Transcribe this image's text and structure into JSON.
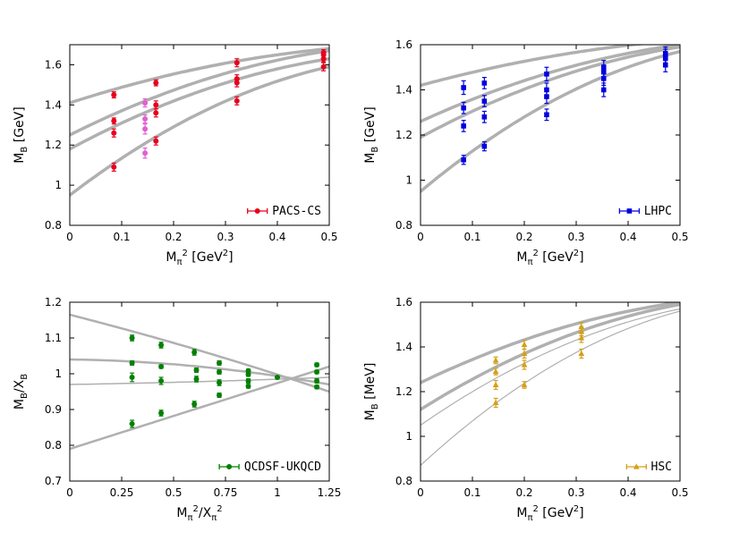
{
  "chart_data": [
    {
      "type": "scatter",
      "xlabel": "Mπ² [GeV²]",
      "ylabel": "MB [GeV]",
      "xlim": [
        0,
        0.5
      ],
      "ylim": [
        0.8,
        1.7
      ],
      "xticks": [
        "0",
        "0.1",
        "0.2",
        "0.3",
        "0.4",
        "0.5"
      ],
      "xtick_values": [
        0,
        0.1,
        0.2,
        0.3,
        0.4,
        0.5
      ],
      "yticks": [
        "0.8",
        "1",
        "1.2",
        "1.4",
        "1.6"
      ],
      "ytick_values": [
        0.8,
        1.0,
        1.2,
        1.4,
        1.6
      ],
      "legend": "PACS-CS",
      "legend_position": "bottom-right",
      "series": [
        {
          "name": "PACS-CS",
          "color": "#e8001c",
          "marker": "circle",
          "x": [
            0.085,
            0.085,
            0.085,
            0.085,
            0.166,
            0.166,
            0.166,
            0.166,
            0.322,
            0.322,
            0.322,
            0.322,
            0.489,
            0.489,
            0.489,
            0.489
          ],
          "y": [
            1.09,
            1.26,
            1.32,
            1.45,
            1.22,
            1.36,
            1.4,
            1.51,
            1.42,
            1.51,
            1.53,
            1.61,
            1.59,
            1.63,
            1.65,
            1.66
          ],
          "err": [
            0.02,
            0.02,
            0.015,
            0.015,
            0.02,
            0.02,
            0.02,
            0.015,
            0.02,
            0.02,
            0.02,
            0.02,
            0.02,
            0.015,
            0.015,
            0.015
          ]
        },
        {
          "name": "",
          "color": "#e060d0",
          "marker": "circle",
          "x": [
            0.145,
            0.145,
            0.145,
            0.145
          ],
          "y": [
            1.16,
            1.28,
            1.33,
            1.41
          ],
          "err": [
            0.025,
            0.025,
            0.02,
            0.02
          ]
        }
      ],
      "curves": [
        {
          "x": [
            0,
            0.5
          ],
          "y0": 0.95,
          "y1": 1.59,
          "width": 3.5
        },
        {
          "x": [
            0,
            0.5
          ],
          "y0": 1.18,
          "y1": 1.63,
          "width": 3.5
        },
        {
          "x": [
            0,
            0.5
          ],
          "y0": 1.25,
          "y1": 1.67,
          "width": 3.5
        },
        {
          "x": [
            0,
            0.5
          ],
          "y0": 1.41,
          "y1": 1.68,
          "width": 3.5
        }
      ]
    },
    {
      "type": "scatter",
      "xlabel": "Mπ² [GeV²]",
      "ylabel": "MB [GeV]",
      "xlim": [
        0,
        0.5
      ],
      "ylim": [
        0.8,
        1.6
      ],
      "xticks": [
        "0",
        "0.1",
        "0.2",
        "0.3",
        "0.4",
        "0.5"
      ],
      "xtick_values": [
        0,
        0.1,
        0.2,
        0.3,
        0.4,
        0.5
      ],
      "yticks": [
        "0.8",
        "1",
        "1.2",
        "1.4",
        "1.6"
      ],
      "ytick_values": [
        0.8,
        1.0,
        1.2,
        1.4,
        1.6
      ],
      "legend": "LHPC",
      "legend_position": "bottom-right",
      "series": [
        {
          "name": "LHPC",
          "color": "#0000e0",
          "marker": "square",
          "x": [
            0.083,
            0.083,
            0.083,
            0.083,
            0.123,
            0.123,
            0.123,
            0.123,
            0.243,
            0.243,
            0.243,
            0.243,
            0.353,
            0.353,
            0.353,
            0.353,
            0.472,
            0.472,
            0.472,
            0.472
          ],
          "y": [
            1.09,
            1.24,
            1.32,
            1.41,
            1.15,
            1.28,
            1.35,
            1.43,
            1.29,
            1.37,
            1.4,
            1.47,
            1.4,
            1.45,
            1.48,
            1.5,
            1.51,
            1.54,
            1.55,
            1.56
          ],
          "err": [
            0.02,
            0.025,
            0.025,
            0.03,
            0.02,
            0.025,
            0.025,
            0.025,
            0.025,
            0.03,
            0.03,
            0.03,
            0.03,
            0.03,
            0.03,
            0.03,
            0.03,
            0.03,
            0.03,
            0.03
          ]
        }
      ],
      "curves": [
        {
          "x": [
            0,
            0.5
          ],
          "y0": 0.95,
          "y1": 1.57,
          "width": 3.5
        },
        {
          "x": [
            0,
            0.5
          ],
          "y0": 1.19,
          "y1": 1.59,
          "width": 3.5
        },
        {
          "x": [
            0,
            0.5
          ],
          "y0": 1.26,
          "y1": 1.6,
          "width": 3.5
        },
        {
          "x": [
            0,
            0.5
          ],
          "y0": 1.42,
          "y1": 1.62,
          "width": 3.5
        }
      ]
    },
    {
      "type": "scatter",
      "xlabel": "Mπ²/Xπ²",
      "ylabel": "MB/XB",
      "xlim": [
        0,
        1.25
      ],
      "ylim": [
        0.7,
        1.2
      ],
      "xticks": [
        "0",
        "0.25",
        "0.5",
        "0.75",
        "1",
        "1.25"
      ],
      "xtick_values": [
        0,
        0.25,
        0.5,
        0.75,
        1.0,
        1.25
      ],
      "yticks": [
        "0.7",
        "0.8",
        "0.9",
        "1",
        "1.1",
        "1.2"
      ],
      "ytick_values": [
        0.7,
        0.8,
        0.9,
        1.0,
        1.1,
        1.2
      ],
      "legend": "QCDSF-UKQCD",
      "legend_position": "bottom-right",
      "series": [
        {
          "name": "QCDSF-UKQCD",
          "color": "#008000",
          "marker": "circle",
          "x": [
            0.3,
            0.3,
            0.3,
            0.3,
            0.44,
            0.44,
            0.44,
            0.44,
            0.6,
            0.61,
            0.61,
            0.6,
            0.72,
            0.72,
            0.72,
            0.72,
            0.86,
            0.86,
            0.86,
            0.86,
            1.0,
            1.19,
            1.19,
            1.19,
            1.19
          ],
          "y": [
            0.86,
            0.99,
            1.03,
            1.1,
            0.89,
            0.98,
            1.02,
            1.08,
            0.915,
            0.985,
            1.01,
            1.06,
            0.94,
            0.975,
            1.005,
            1.03,
            0.965,
            0.98,
            0.998,
            1.008,
            0.99,
            0.963,
            0.98,
            1.005,
            1.025
          ],
          "err": [
            0.01,
            0.012,
            0.006,
            0.008,
            0.008,
            0.01,
            0.005,
            0.008,
            0.008,
            0.008,
            0.006,
            0.008,
            0.006,
            0.008,
            0.006,
            0.006,
            0.005,
            0.006,
            0.005,
            0.005,
            0.004,
            0.005,
            0.006,
            0.005,
            0.005
          ]
        }
      ],
      "curves": [
        {
          "x": [
            0,
            1.25
          ],
          "y0": 0.79,
          "y1": 1.02,
          "mid": 0.905,
          "width": 2.5
        },
        {
          "x": [
            0,
            1.25
          ],
          "y0": 0.97,
          "y1": 0.99,
          "mid": 0.978,
          "width": 1.5
        },
        {
          "x": [
            0,
            1.25
          ],
          "y0": 1.04,
          "y1": 0.97,
          "mid": 1.02,
          "width": 2.5
        },
        {
          "x": [
            0,
            1.25
          ],
          "y0": 1.165,
          "y1": 0.95,
          "mid": 1.065,
          "width": 2.5
        }
      ]
    },
    {
      "type": "scatter",
      "xlabel": "Mπ² [GeV²]",
      "ylabel": "MB [MeV]",
      "xlim": [
        0,
        0.5
      ],
      "ylim": [
        0.8,
        1.6
      ],
      "xticks": [
        "0",
        "0.1",
        "0.2",
        "0.3",
        "0.4",
        "0.5"
      ],
      "xtick_values": [
        0,
        0.1,
        0.2,
        0.3,
        0.4,
        0.5
      ],
      "yticks": [
        "0.8",
        "1",
        "1.2",
        "1.4",
        "1.6"
      ],
      "ytick_values": [
        0.8,
        1.0,
        1.2,
        1.4,
        1.6
      ],
      "legend": "HSC",
      "legend_position": "bottom-right",
      "series": [
        {
          "name": "HSC",
          "color": "#d4a017",
          "marker": "triangle",
          "x": [
            0.145,
            0.145,
            0.145,
            0.145,
            0.2,
            0.2,
            0.2,
            0.2,
            0.31,
            0.31,
            0.31,
            0.31
          ],
          "y": [
            1.15,
            1.23,
            1.29,
            1.34,
            1.23,
            1.32,
            1.37,
            1.41,
            1.37,
            1.44,
            1.47,
            1.49
          ],
          "err": [
            0.02,
            0.02,
            0.015,
            0.015,
            0.015,
            0.02,
            0.02,
            0.02,
            0.02,
            0.02,
            0.02,
            0.02
          ]
        }
      ],
      "curves": [
        {
          "x": [
            0,
            0.5
          ],
          "y0": 0.87,
          "y1": 1.56,
          "width": 1.2
        },
        {
          "x": [
            0,
            0.5
          ],
          "y0": 1.05,
          "y1": 1.57,
          "width": 1.2
        },
        {
          "x": [
            0,
            0.5
          ],
          "y0": 1.12,
          "y1": 1.59,
          "width": 3.5
        },
        {
          "x": [
            0,
            0.5
          ],
          "y0": 1.24,
          "y1": 1.6,
          "width": 3.5
        }
      ]
    }
  ]
}
